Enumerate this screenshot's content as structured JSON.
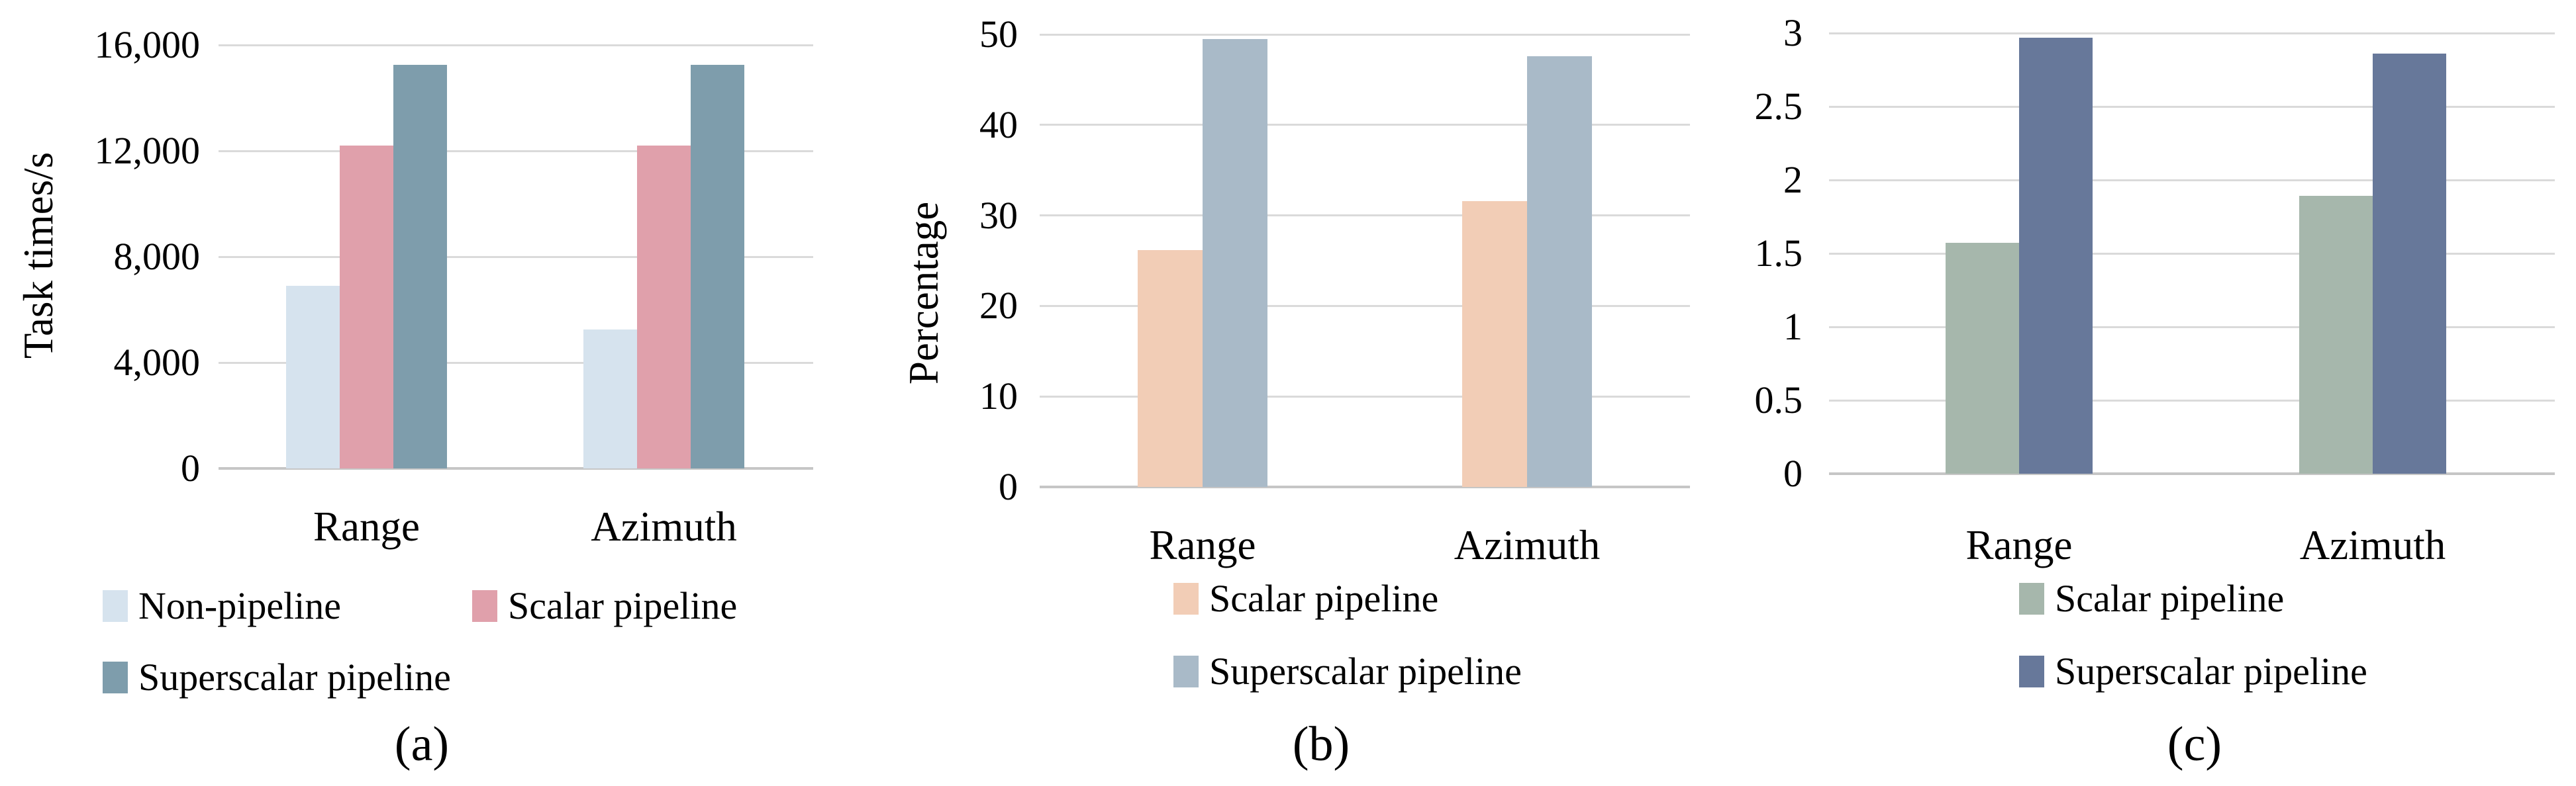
{
  "palette": {
    "background": "#ffffff",
    "gridline": "#dadada",
    "axis_line": "#c6c6c6",
    "text": "#000000"
  },
  "chart_data": [
    {
      "type": "bar",
      "caption": "(a)",
      "ylabel": "Task times/s",
      "xlabel": "",
      "categories": [
        "Range",
        "Azimuth"
      ],
      "series": [
        {
          "name": "Non-pipeline",
          "color": "#d6e3ee",
          "values": [
            6900,
            5250
          ]
        },
        {
          "name": "Scalar pipeline",
          "color": "#e0a0ab",
          "values": [
            12200,
            12200
          ]
        },
        {
          "name": "Superscalar pipeline",
          "color": "#7e9dac",
          "values": [
            15250,
            15250
          ]
        }
      ],
      "ylim": [
        0,
        16000
      ],
      "yticks": [
        0,
        4000,
        8000,
        12000,
        16000
      ],
      "ytick_labels": [
        "0",
        "4,000",
        "8,000",
        "12,000",
        "16,000"
      ],
      "grid": true,
      "legend_position": "bottom"
    },
    {
      "type": "bar",
      "caption": "(b)",
      "ylabel": "Percentage",
      "xlabel": "",
      "categories": [
        "Range",
        "Azimuth"
      ],
      "series": [
        {
          "name": "Scalar pipeline",
          "color": "#f2cdb6",
          "values": [
            26.2,
            31.6
          ]
        },
        {
          "name": "Superscalar pipeline",
          "color": "#a9bac8",
          "values": [
            49.5,
            47.6
          ]
        }
      ],
      "ylim": [
        0,
        50
      ],
      "yticks": [
        0,
        10,
        20,
        30,
        40,
        50
      ],
      "ytick_labels": [
        "0",
        "10",
        "20",
        "30",
        "40",
        "50"
      ],
      "grid": true,
      "legend_position": "bottom"
    },
    {
      "type": "bar",
      "caption": "(c)",
      "ylabel": "",
      "xlabel": "",
      "categories": [
        "Range",
        "Azimuth"
      ],
      "series": [
        {
          "name": "Scalar pipeline",
          "color": "#a6b7ac",
          "values": [
            1.57,
            1.89
          ]
        },
        {
          "name": "Superscalar pipeline",
          "color": "#67789a",
          "values": [
            2.97,
            2.86
          ]
        }
      ],
      "ylim": [
        0,
        3
      ],
      "yticks": [
        0,
        0.5,
        1,
        1.5,
        2,
        2.5,
        3
      ],
      "ytick_labels": [
        "0",
        "0.5",
        "1",
        "1.5",
        "2",
        "2.5",
        "3"
      ],
      "grid": true,
      "legend_position": "bottom"
    }
  ]
}
